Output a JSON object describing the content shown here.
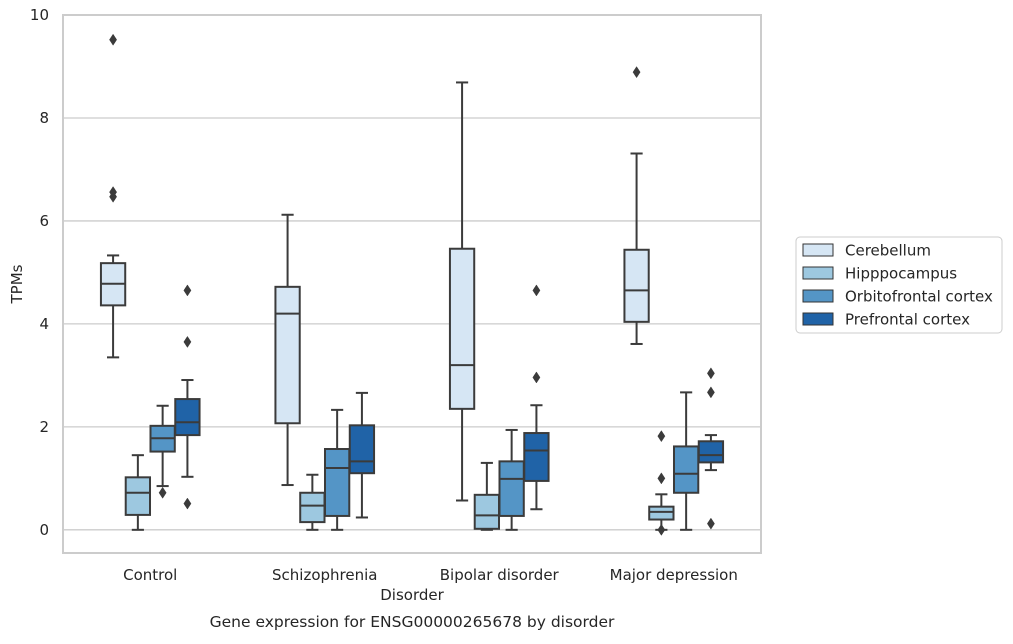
{
  "chart_data": {
    "type": "box",
    "xlabel": "Disorder",
    "ylabel": "TPMs",
    "caption": "Gene expression for ENSG00000265678 by disorder",
    "categories": [
      "Control",
      "Schizophrenia",
      "Bipolar disorder",
      "Major depression"
    ],
    "y_ticks": [
      "0",
      "2",
      "4",
      "6",
      "8",
      "10"
    ],
    "y_tick_values": [
      0,
      2,
      4,
      6,
      8,
      10
    ],
    "ylim": [
      -0.45,
      10
    ],
    "grid": "horizontal",
    "legend_position": "right",
    "series": [
      {
        "name": "Cerebellum",
        "color": "#d6e6f4",
        "boxes": [
          {
            "whislo": 3.35,
            "q1": 4.36,
            "med": 4.78,
            "q3": 5.18,
            "whishi": 5.33,
            "fliers": [
              6.47,
              6.56,
              9.52
            ]
          },
          {
            "whislo": 0.87,
            "q1": 2.07,
            "med": 4.2,
            "q3": 4.72,
            "whishi": 6.12,
            "fliers": []
          },
          {
            "whislo": 0.57,
            "q1": 2.35,
            "med": 3.2,
            "q3": 5.46,
            "whishi": 8.69,
            "fliers": []
          },
          {
            "whislo": 3.61,
            "q1": 4.04,
            "med": 4.65,
            "q3": 5.44,
            "whishi": 7.31,
            "fliers": [
              8.89
            ]
          }
        ]
      },
      {
        "name": "Hipppocampus",
        "color": "#9dc8e0",
        "boxes": [
          {
            "whislo": 0.0,
            "q1": 0.29,
            "med": 0.72,
            "q3": 1.02,
            "whishi": 1.45,
            "fliers": []
          },
          {
            "whislo": 0.0,
            "q1": 0.15,
            "med": 0.47,
            "q3": 0.72,
            "whishi": 1.07,
            "fliers": []
          },
          {
            "whislo": 0.0,
            "q1": 0.02,
            "med": 0.28,
            "q3": 0.68,
            "whishi": 1.3,
            "fliers": []
          },
          {
            "whislo": 0.0,
            "q1": 0.2,
            "med": 0.35,
            "q3": 0.45,
            "whishi": 0.69,
            "fliers": [
              0.0,
              1.0,
              1.82
            ]
          }
        ]
      },
      {
        "name": "Orbitofrontal cortex",
        "color": "#5495c6",
        "boxes": [
          {
            "whislo": 0.85,
            "q1": 1.52,
            "med": 1.78,
            "q3": 2.02,
            "whishi": 2.41,
            "fliers": [
              0.72
            ]
          },
          {
            "whislo": 0.0,
            "q1": 0.27,
            "med": 1.2,
            "q3": 1.57,
            "whishi": 2.33,
            "fliers": []
          },
          {
            "whislo": 0.0,
            "q1": 0.27,
            "med": 0.99,
            "q3": 1.33,
            "whishi": 1.94,
            "fliers": []
          },
          {
            "whislo": 0.0,
            "q1": 0.72,
            "med": 1.09,
            "q3": 1.62,
            "whishi": 2.67,
            "fliers": []
          }
        ]
      },
      {
        "name": "Prefrontal cortex",
        "color": "#2063a7",
        "boxes": [
          {
            "whislo": 1.03,
            "q1": 1.84,
            "med": 2.09,
            "q3": 2.54,
            "whishi": 2.91,
            "fliers": [
              0.51,
              3.65,
              4.65
            ]
          },
          {
            "whislo": 0.24,
            "q1": 1.1,
            "med": 1.33,
            "q3": 2.03,
            "whishi": 2.66,
            "fliers": []
          },
          {
            "whislo": 0.4,
            "q1": 0.95,
            "med": 1.54,
            "q3": 1.88,
            "whishi": 2.42,
            "fliers": [
              2.96,
              4.65
            ]
          },
          {
            "whislo": 1.16,
            "q1": 1.31,
            "med": 1.45,
            "q3": 1.72,
            "whishi": 1.84,
            "fliers": [
              0.12,
              2.67,
              3.04
            ]
          }
        ]
      }
    ]
  }
}
